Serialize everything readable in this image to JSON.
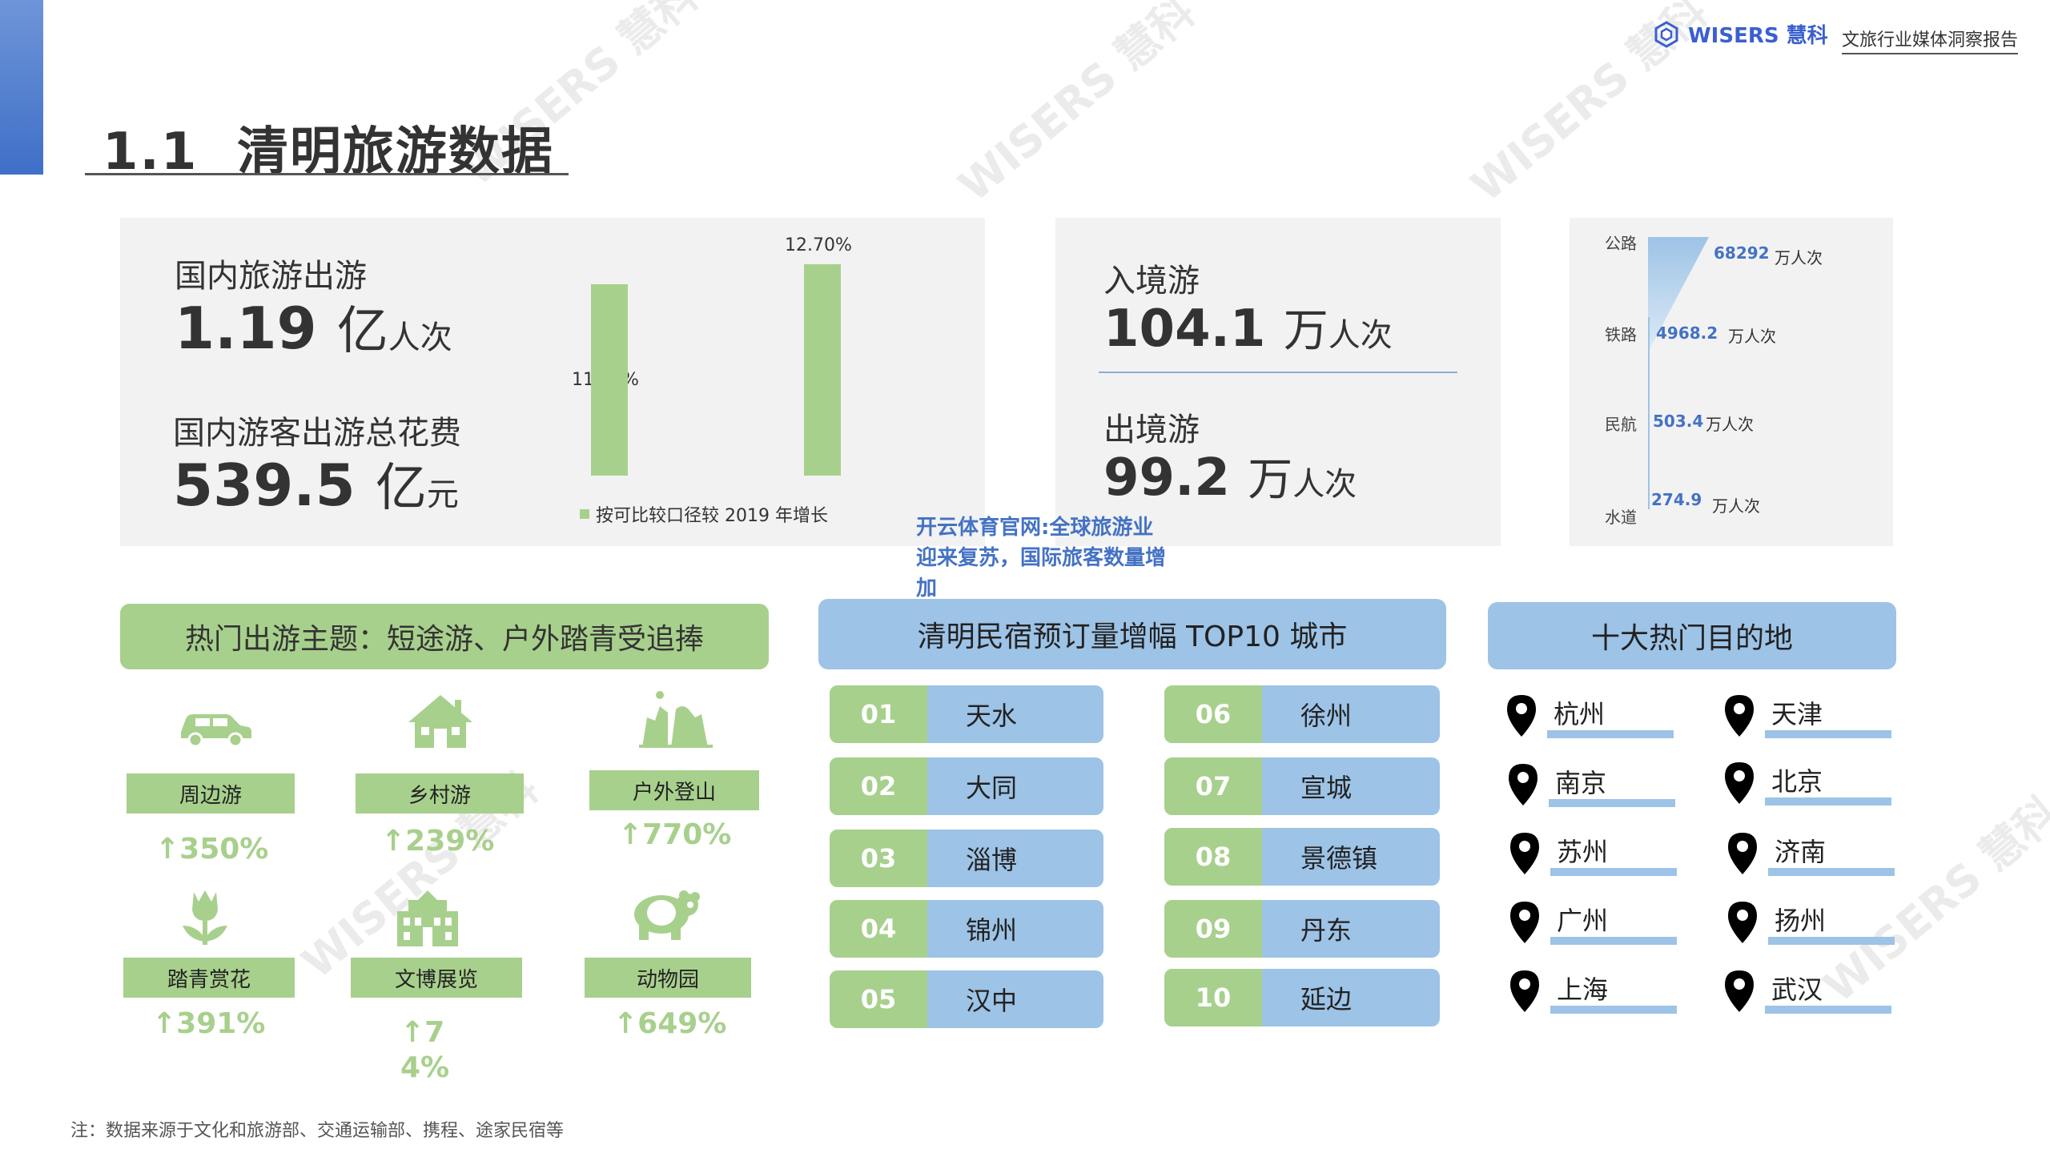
{
  "header": {
    "title_num": "1.1",
    "title_text": "清明旅游数据",
    "brand": "WISERS 慧科",
    "brand_sub": "文旅行业媒体洞察报告"
  },
  "domestic": {
    "trips_label": "国内旅游出游",
    "trips_value": "1.19",
    "trips_unit_big": "亿",
    "trips_unit_small": "人次",
    "spend_label": "国内游客出游总花费",
    "spend_value": "539.5",
    "spend_unit_big": "亿",
    "spend_unit_small": "元"
  },
  "growth_chart": {
    "bars": [
      {
        "label": "11.50%",
        "value": 11.5
      },
      {
        "label": "12.70%",
        "value": 12.7
      }
    ],
    "legend": "按可比较口径较 2019 年增长"
  },
  "border": {
    "inbound_label": "入境游",
    "inbound_value": "104.1",
    "inbound_unit_big": "万",
    "inbound_unit_small": "人次",
    "outbound_label": "出境游",
    "outbound_value": "99.2",
    "outbound_unit_big": "万",
    "outbound_unit_small": "人次"
  },
  "transport": {
    "items": [
      {
        "mode": "公路",
        "value": "68292",
        "unit": "万人次"
      },
      {
        "mode": "铁路",
        "value": "4968.2",
        "unit": "万人次"
      },
      {
        "mode": "民航",
        "value": "503.4",
        "unit": "万人次"
      },
      {
        "mode": "水道",
        "value": "274.9",
        "unit": "万人次"
      }
    ]
  },
  "overlay_text": "开云体育官网:全球旅游业迎来复苏，国际旅客数量增加",
  "themes": {
    "header": "热门出游主题：短途游、户外踏青受追捧",
    "items": [
      {
        "label": "周边游",
        "pct": "↑350%",
        "icon": "car-icon"
      },
      {
        "label": "乡村游",
        "pct": "↑239%",
        "icon": "house-icon"
      },
      {
        "label": "户外登山",
        "pct": "↑770%",
        "icon": "mountain-icon"
      },
      {
        "label": "踏青赏花",
        "pct": "↑391%",
        "icon": "tulip-icon"
      },
      {
        "label": "文博展览",
        "pct": "↑74%",
        "icon": "museum-icon"
      },
      {
        "label": "动物园",
        "pct": "↑649%",
        "icon": "panda-icon"
      }
    ]
  },
  "top10": {
    "header": "清明民宿预订量增幅 TOP10 城市",
    "cities": [
      {
        "num": "01",
        "name": "天水"
      },
      {
        "num": "02",
        "name": "大同"
      },
      {
        "num": "03",
        "name": "淄博"
      },
      {
        "num": "04",
        "name": "锦州"
      },
      {
        "num": "05",
        "name": "汉中"
      },
      {
        "num": "06",
        "name": "徐州"
      },
      {
        "num": "07",
        "name": "宣城"
      },
      {
        "num": "08",
        "name": "景德镇"
      },
      {
        "num": "09",
        "name": "丹东"
      },
      {
        "num": "10",
        "name": "延边"
      }
    ]
  },
  "destinations": {
    "header": "十大热门目的地",
    "items": [
      "杭州",
      "天津",
      "南京",
      "北京",
      "苏州",
      "济南",
      "广州",
      "扬州",
      "上海",
      "武汉"
    ]
  },
  "note": "注：数据来源于文化和旅游部、交通运输部、携程、途家民宿等",
  "watermark": "WISERS 慧科",
  "colors": {
    "green": "#a8d08d",
    "blue": "#9dc3e6",
    "accent": "#4472c4"
  }
}
